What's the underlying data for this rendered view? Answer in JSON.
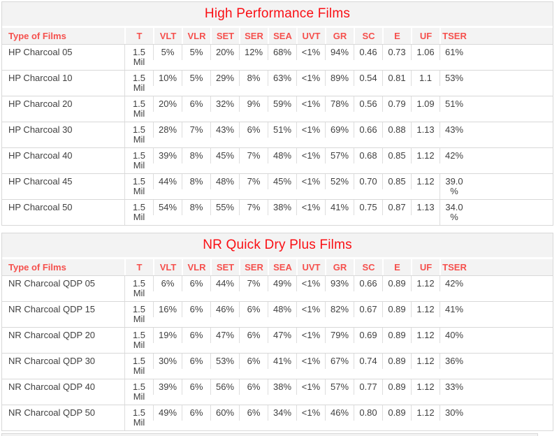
{
  "colors": {
    "title_red": "#fa0f14",
    "header_red": "#f5504d",
    "data_text": "#404040",
    "row_border": "#d8d8d8",
    "cell_border": "#dddddd",
    "header_bg": "#f3f3f3",
    "title_bg": "#f3f3f3"
  },
  "columns": [
    "Type of Films",
    "T",
    "VLT",
    "VLR",
    "SET",
    "SER",
    "SEA",
    "UVT",
    "GR",
    "SC",
    "E",
    "UF",
    "TSER"
  ],
  "tables": [
    {
      "title": "High Performance Films",
      "rows": [
        {
          "name": "HP Charcoal 05",
          "t": "1.5 Mil",
          "values": [
            "5%",
            "5%",
            "20%",
            "12%",
            "68%",
            "<1%",
            "94%",
            "0.46",
            "0.73",
            "1.06",
            "61%"
          ]
        },
        {
          "name": "HP Charcoal 10",
          "t": "1.5 Mil",
          "values": [
            "10%",
            "5%",
            "29%",
            "8%",
            "63%",
            "<1%",
            "89%",
            "0.54",
            "0.81",
            "1.1",
            "53%"
          ]
        },
        {
          "name": "HP Charcoal 20",
          "t": "1.5 Mil",
          "values": [
            "20%",
            "6%",
            "32%",
            "9%",
            "59%",
            "<1%",
            "78%",
            "0.56",
            "0.79",
            "1.09",
            "51%"
          ]
        },
        {
          "name": "HP Charcoal 30",
          "t": "1.5 Mil",
          "values": [
            "28%",
            "7%",
            "43%",
            "6%",
            "51%",
            "<1%",
            "69%",
            "0.66",
            "0.88",
            "1.13",
            "43%"
          ]
        },
        {
          "name": "HP Charcoal 40",
          "t": "1.5 Mil",
          "values": [
            "39%",
            "8%",
            "45%",
            "7%",
            "48%",
            "<1%",
            "57%",
            "0.68",
            "0.85",
            "1.12",
            "42%"
          ]
        },
        {
          "name": "HP Charcoal 45",
          "t": "1.5 Mil",
          "values": [
            "44%",
            "8%",
            "48%",
            "7%",
            "45%",
            "<1%",
            "52%",
            "0.70",
            "0.85",
            "1.12",
            "39.0 %"
          ]
        },
        {
          "name": "HP Charcoal 50",
          "t": "1.5 Mil",
          "values": [
            "54%",
            "8%",
            "55%",
            "7%",
            "38%",
            "<1%",
            "41%",
            "0.75",
            "0.87",
            "1.13",
            "34.0 %"
          ]
        }
      ]
    },
    {
      "title": "NR Quick Dry Plus Films",
      "rows": [
        {
          "name": "NR Charcoal QDP 05",
          "t": "1.5 Mil",
          "values": [
            "6%",
            "6%",
            "44%",
            "7%",
            "49%",
            "<1%",
            "93%",
            "0.66",
            "0.89",
            "1.12",
            "42%"
          ]
        },
        {
          "name": "NR Charcoal QDP 15",
          "t": "1.5 Mil",
          "values": [
            "16%",
            "6%",
            "46%",
            "6%",
            "48%",
            "<1%",
            "82%",
            "0.67",
            "0.89",
            "1.12",
            "41%"
          ]
        },
        {
          "name": "NR Charcoal QDP 20",
          "t": "1.5 Mil",
          "values": [
            "19%",
            "6%",
            "47%",
            "6%",
            "47%",
            "<1%",
            "79%",
            "0.69",
            "0.89",
            "1.12",
            "40%"
          ]
        },
        {
          "name": "NR Charcoal QDP 30",
          "t": "1.5 Mil",
          "values": [
            "30%",
            "6%",
            "53%",
            "6%",
            "41%",
            "<1%",
            "67%",
            "0.74",
            "0.89",
            "1.12",
            "36%"
          ]
        },
        {
          "name": "NR Charcoal QDP 40",
          "t": "1.5 Mil",
          "values": [
            "39%",
            "6%",
            "56%",
            "6%",
            "38%",
            "<1%",
            "57%",
            "0.77",
            "0.89",
            "1.12",
            "33%"
          ]
        },
        {
          "name": "NR Charcoal QDP 50",
          "t": "1.5 Mil",
          "values": [
            "49%",
            "6%",
            "60%",
            "6%",
            "34%",
            "<1%",
            "46%",
            "0.80",
            "0.89",
            "1.12",
            "30%"
          ]
        }
      ]
    }
  ]
}
